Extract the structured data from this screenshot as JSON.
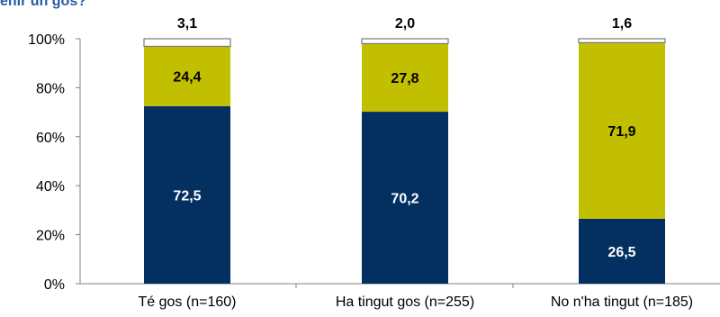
{
  "title": "enir un gos?",
  "colors": {
    "series1": "#033060",
    "series2": "#c2bf00",
    "series3": "#ffffff",
    "label_on_dark": "#ffffff",
    "label_on_light": "#000000",
    "axis": "#808080"
  },
  "chart_data": {
    "type": "bar",
    "stacked": true,
    "title": "enir un gos?",
    "categories": [
      "Té gos (n=160)",
      "Ha tingut gos (n=255)",
      "No n'ha tingut (n=185)"
    ],
    "series": [
      {
        "values": [
          72.5,
          70.2,
          26.5
        ],
        "labels": [
          "72,5",
          "70,2",
          "26,5"
        ]
      },
      {
        "values": [
          24.4,
          27.8,
          71.9
        ],
        "labels": [
          "24,4",
          "27,8",
          "71,9"
        ]
      },
      {
        "values": [
          3.1,
          2.0,
          1.6
        ],
        "labels": [
          "3,1",
          "2,0",
          "1,6"
        ]
      }
    ],
    "yticks": [
      "0%",
      "20%",
      "40%",
      "60%",
      "80%",
      "100%"
    ],
    "ylim": [
      0,
      100
    ],
    "xlabel": "",
    "ylabel": "",
    "grid": false,
    "legend": "none"
  }
}
